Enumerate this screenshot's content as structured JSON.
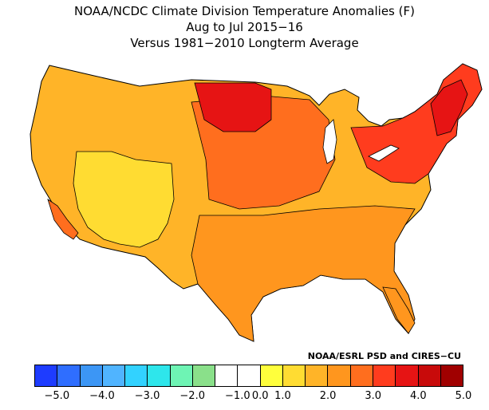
{
  "title": {
    "line1": "NOAA/NCDC Climate Division Temperature Anomalies (F)",
    "line2": "Aug to Jul 2015−16",
    "line3": "Versus 1981−2010 Longterm Average"
  },
  "credit": "NOAA/ESRL PSD and CIRES−CU",
  "colorbar": {
    "colors": [
      "#1e3cff",
      "#2f6eff",
      "#3c96f5",
      "#50b4ff",
      "#32d2ff",
      "#2ee6eb",
      "#6ef4b4",
      "#8ae08a",
      "#ffffff",
      "#ffffff",
      "#ffff3c",
      "#ffdc32",
      "#ffb428",
      "#ff961e",
      "#ff6e1e",
      "#ff3c1e",
      "#e61414",
      "#c80a0a",
      "#a00000"
    ],
    "labels": [
      "−5.0",
      "−4.0",
      "−3.0",
      "−2.0",
      "−1.0",
      "0.0",
      "1.0",
      "2.0",
      "3.0",
      "4.0",
      "5.0"
    ],
    "label_ticks": [
      1,
      3,
      5,
      7,
      9,
      10,
      11,
      13,
      15,
      17,
      19
    ]
  },
  "map": {
    "region": "Contiguous United States",
    "description_colors": {
      "cool_low": "#ffdc32",
      "mid": "#ffb428",
      "warm": "#ff961e",
      "hot": "#ff6e1e",
      "hotter": "#ff3c1e",
      "hottest": "#e61414"
    }
  }
}
